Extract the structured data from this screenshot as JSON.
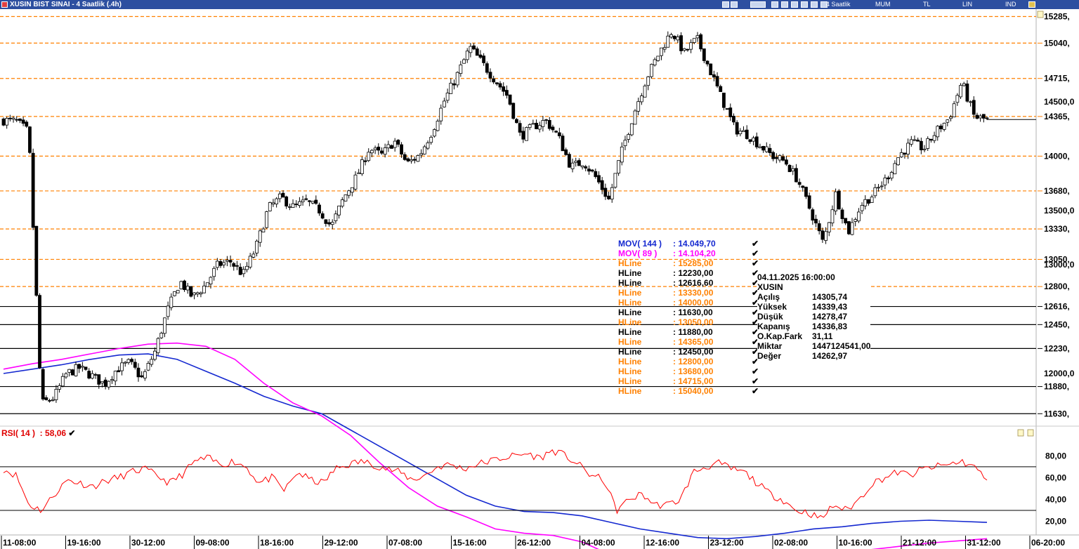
{
  "window": {
    "title": "XUSIN BIST SINAI - 4 Saatlik (.4h)",
    "toolbar": [
      "4 Saatlik",
      "MUM",
      "TL",
      "LIN",
      "IND"
    ]
  },
  "chart_data": [
    {
      "type": "candlestick",
      "symbol": "XUSIN",
      "ylim": [
        11600,
        15300
      ],
      "yticks_right": [
        14500,
        13500,
        13000,
        12000
      ],
      "ytick_labels": {
        "14500": "14500,0",
        "13500": "13500,0",
        "13000": "13000,0",
        "12000": "12000,0"
      },
      "x_labels": [
        "11-08:00",
        "19-16:00",
        "30-12:00",
        "09-08:00",
        "18-16:00",
        "29-12:00",
        "07-08:00",
        "15-16:00",
        "26-12:00",
        "04-08:00",
        "12-16:00",
        "23-12:00",
        "02-08:00",
        "10-16:00",
        "21-12:00",
        "31-12:00",
        "06-20:00"
      ],
      "close_path": [
        14330,
        14320,
        14220,
        11720,
        11780,
        12000,
        12050,
        11980,
        11900,
        12040,
        12100,
        11950,
        12200,
        12580,
        12850,
        12700,
        12810,
        13000,
        13030,
        12910,
        13150,
        13520,
        13620,
        13530,
        13580,
        13510,
        13350,
        13620,
        13810,
        14070,
        14010,
        14140,
        13930,
        14010,
        14230,
        14520,
        14750,
        15000,
        14850,
        14700,
        14550,
        14180,
        14270,
        14330,
        14180,
        13900,
        13950,
        13800,
        13600,
        14030,
        14400,
        14720,
        14950,
        15150,
        14950,
        15080,
        14800,
        14520,
        14250,
        14200,
        14100,
        14000,
        13950,
        13780,
        13500,
        13200,
        13650,
        13300,
        13550,
        13650,
        13790,
        14000,
        14120,
        14070,
        14230,
        14350,
        14680,
        14360,
        14336
      ],
      "moving_averages": [
        {
          "name": "MOV( 144 )",
          "value": "14.049,70",
          "color": "#1428d0",
          "values": [
            14330,
            14290,
            14250,
            14200,
            14160,
            14150,
            14200,
            14310,
            14420,
            14540,
            14630,
            14700,
            14850,
            15000,
            15150,
            15300,
            15450,
            15550,
            15600,
            15610,
            15640,
            15700,
            15760,
            15800,
            15840,
            15850,
            15830,
            15800,
            15760,
            15740,
            15710,
            15690,
            15680,
            15690,
            15700
          ]
        },
        {
          "name": "MOV( 89 )",
          "value": "14.104,20",
          "color": "#ff00ff",
          "values": [
            14290,
            14240,
            14200,
            14150,
            14100,
            14060,
            14050,
            14080,
            14200,
            14420,
            14600,
            14720,
            14900,
            15150,
            15380,
            15550,
            15650,
            15760,
            15800,
            15820,
            15880,
            16000,
            16120,
            16150,
            16100,
            16020,
            15960,
            15950,
            15960,
            15970,
            15950,
            15920,
            15890,
            15870,
            15850
          ]
        }
      ],
      "hlines": [
        {
          "label": "HLine",
          "value": "15285,00",
          "price": 15285,
          "axis_label": "15285,",
          "color": "#ff8000",
          "style": "dashed"
        },
        {
          "label": "HLine",
          "value": "12230,00",
          "price": 12230,
          "axis_label": "12230,",
          "color": "#000000",
          "style": "solid"
        },
        {
          "label": "HLine",
          "value": "12616,60",
          "price": 12616.6,
          "axis_label": "12616,",
          "color": "#000000",
          "style": "solid"
        },
        {
          "label": "HLine",
          "value": "13330,00",
          "price": 13330,
          "axis_label": "13330,",
          "color": "#ff8000",
          "style": "dashed"
        },
        {
          "label": "HLine",
          "value": "14000,00",
          "price": 14000,
          "axis_label": "14000,",
          "color": "#ff8000",
          "style": "dashed"
        },
        {
          "label": "HLine",
          "value": "11630,00",
          "price": 11630,
          "axis_label": "11630,",
          "color": "#000000",
          "style": "solid"
        },
        {
          "label": "HLine",
          "value": "13050,00",
          "price": 13050,
          "axis_label": "13050,",
          "color": "#ff8000",
          "style": "dashed"
        },
        {
          "label": "HLine",
          "value": "11880,00",
          "price": 11880,
          "axis_label": "11880,",
          "color": "#000000",
          "style": "solid"
        },
        {
          "label": "HLine",
          "value": "14365,00",
          "price": 14365,
          "axis_label": "14365,",
          "color": "#ff8000",
          "style": "dashed"
        },
        {
          "label": "HLine",
          "value": "12450,00",
          "price": 12450,
          "axis_label": "12450,",
          "color": "#000000",
          "style": "solid"
        },
        {
          "label": "HLine",
          "value": "12800,00",
          "price": 12800,
          "axis_label": "12800,",
          "color": "#ff8000",
          "style": "dashed"
        },
        {
          "label": "HLine",
          "value": "13680,00",
          "price": 13680,
          "axis_label": "13680,",
          "color": "#ff8000",
          "style": "dashed"
        },
        {
          "label": "HLine",
          "value": "14715,00",
          "price": 14715,
          "axis_label": "14715,",
          "color": "#ff8000",
          "style": "dashed"
        },
        {
          "label": "HLine",
          "value": "15040,00",
          "price": 15040,
          "axis_label": "15040,",
          "color": "#ff8000",
          "style": "dashed"
        }
      ],
      "info_box": {
        "date": "04.11.2025  16:00:00",
        "symbol": "XUSIN",
        "rows": [
          {
            "label": "Açılış",
            "value": "14305,74"
          },
          {
            "label": "Yüksek",
            "value": "14339,43"
          },
          {
            "label": "Düşük",
            "value": "14278,47"
          },
          {
            "label": "Kapanış",
            "value": "14336,83"
          },
          {
            "label": "O.Kap.Fark",
            "value": "31,11"
          },
          {
            "label": "Miktar",
            "value": "1447124541,00"
          },
          {
            "label": "Değer",
            "value": "14262,97"
          }
        ]
      }
    },
    {
      "type": "line",
      "name": "RSI( 14 )",
      "value": "58,06",
      "color": "#ff0000",
      "ylim": [
        10,
        95
      ],
      "yticks": [
        20,
        40,
        60,
        80
      ],
      "ytick_labels": [
        "20,00",
        "40,00",
        "60,00",
        "80,00"
      ],
      "reference_lines": [
        30,
        70
      ],
      "values": [
        68,
        62,
        35,
        30,
        45,
        58,
        55,
        52,
        57,
        60,
        65,
        68,
        62,
        55,
        63,
        75,
        78,
        72,
        75,
        70,
        55,
        60,
        48,
        65,
        58,
        55,
        68,
        72,
        75,
        72,
        68,
        65,
        58,
        62,
        70,
        72,
        68,
        72,
        75,
        78,
        80,
        82,
        78,
        85,
        80,
        72,
        62,
        58,
        30,
        40,
        45,
        35,
        35,
        40,
        65,
        70,
        73,
        68,
        65,
        55,
        45,
        40,
        30,
        28,
        22,
        35,
        30,
        40,
        55,
        60,
        65,
        62,
        68,
        70,
        72,
        75,
        70,
        58
      ]
    }
  ]
}
